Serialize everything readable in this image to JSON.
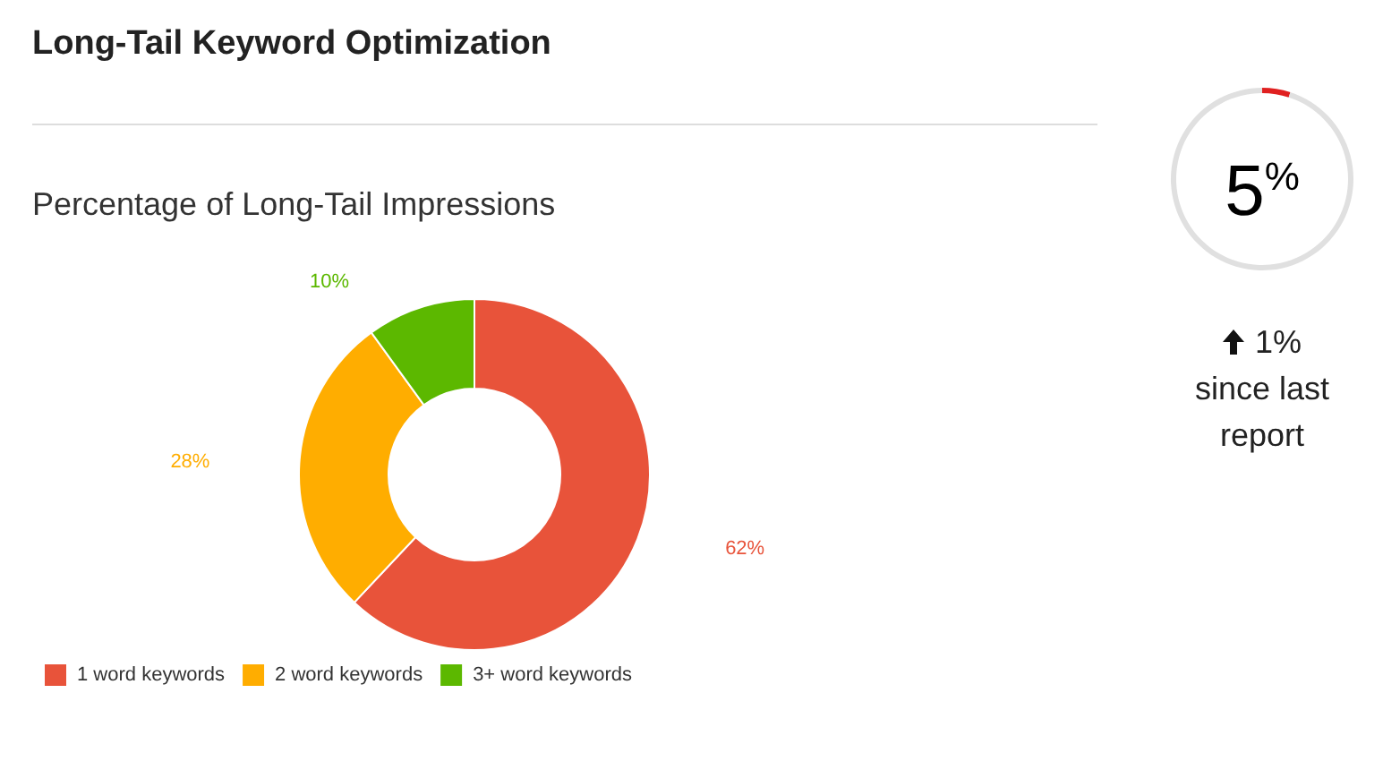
{
  "chart_data": [
    {
      "type": "donut",
      "title": "Long-Tail Keyword Optimization",
      "subtitle": "Percentage of Long-Tail Impressions",
      "categories": [
        "1 word keywords",
        "2 word keywords",
        "3+ word keywords"
      ],
      "values": [
        62,
        28,
        10
      ],
      "colors": [
        "#e8533a",
        "#ffad00",
        "#5cb800"
      ],
      "value_labels": [
        "62%",
        "28%",
        "10%"
      ],
      "legend": "bottom left"
    },
    {
      "type": "donut",
      "categories": [
        null,
        null
      ],
      "values": [
        5,
        95
      ],
      "colors": [
        "#e02020",
        "#e0e0e0"
      ],
      "annotations": [
        "5$^{%}$",
        "1%",
        "since last report"
      ]
    }
  ]
}
